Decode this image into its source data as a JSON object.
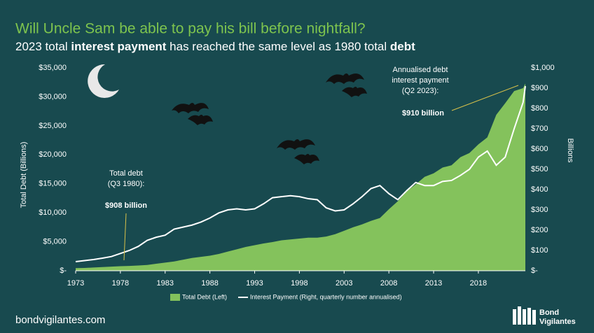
{
  "chart_data": {
    "type": "combo",
    "title": "Will Uncle Sam be able to pay his bill before nightfall?",
    "subtitle": [
      {
        "text": "2023 total ",
        "bold": false
      },
      {
        "text": "interest payment",
        "bold": true
      },
      {
        "text": " has reached the same level as 1980 total ",
        "bold": false
      },
      {
        "text": "debt",
        "bold": true
      }
    ],
    "x": [
      1973,
      1974,
      1975,
      1976,
      1977,
      1978,
      1979,
      1980,
      1981,
      1982,
      1983,
      1984,
      1985,
      1986,
      1987,
      1988,
      1989,
      1990,
      1991,
      1992,
      1993,
      1994,
      1995,
      1996,
      1997,
      1998,
      1999,
      2000,
      2001,
      2002,
      2003,
      2004,
      2005,
      2006,
      2007,
      2008,
      2009,
      2010,
      2011,
      2012,
      2013,
      2014,
      2015,
      2016,
      2017,
      2018,
      2019,
      2020,
      2021,
      2022,
      2023,
      2023.25
    ],
    "xlim": [
      1973,
      2023.25
    ],
    "xticks": [
      1973,
      1978,
      1983,
      1988,
      1993,
      1998,
      2003,
      2008,
      2013,
      2018
    ],
    "y_label": "Total Debt (Billions)",
    "y2_label": "Billions",
    "ylim": [
      0,
      35000
    ],
    "yticks": [
      {
        "value": 0,
        "label": "$-"
      },
      {
        "value": 5000,
        "label": "$5,000"
      },
      {
        "value": 10000,
        "label": "$10,000"
      },
      {
        "value": 15000,
        "label": "$15,000"
      },
      {
        "value": 20000,
        "label": "$20,000"
      },
      {
        "value": 25000,
        "label": "$25,000"
      },
      {
        "value": 30000,
        "label": "$30,000"
      },
      {
        "value": 35000,
        "label": "$35,000"
      }
    ],
    "y2lim": [
      0,
      1000
    ],
    "y2ticks": [
      {
        "value": 0,
        "label": "$-"
      },
      {
        "value": 100,
        "label": "$100"
      },
      {
        "value": 200,
        "label": "$200"
      },
      {
        "value": 300,
        "label": "$300"
      },
      {
        "value": 400,
        "label": "$400"
      },
      {
        "value": 500,
        "label": "$500"
      },
      {
        "value": 600,
        "label": "$600"
      },
      {
        "value": 700,
        "label": "$700"
      },
      {
        "value": 800,
        "label": "$800"
      },
      {
        "value": 900,
        "label": "$900"
      },
      {
        "value": 1000,
        "label": "$1,000"
      }
    ],
    "series": [
      {
        "name": "Total Debt (Left)",
        "type": "area",
        "axis": "y",
        "color": "#84c25c",
        "values": [
          460,
          480,
          560,
          640,
          710,
          780,
          830,
          908,
          1000,
          1200,
          1400,
          1600,
          1900,
          2200,
          2400,
          2600,
          2900,
          3300,
          3700,
          4100,
          4400,
          4700,
          4950,
          5250,
          5400,
          5550,
          5700,
          5700,
          5900,
          6300,
          6900,
          7500,
          8000,
          8600,
          9100,
          10600,
          12000,
          13700,
          14900,
          16200,
          16800,
          17800,
          18200,
          19600,
          20300,
          21800,
          23000,
          26900,
          28900,
          31000,
          31500,
          32300
        ]
      },
      {
        "name": "Interest Payment (Right, quarterly number annualised)",
        "type": "line",
        "axis": "y2",
        "color": "#ffffff",
        "values": [
          45,
          50,
          55,
          62,
          70,
          85,
          100,
          120,
          150,
          165,
          175,
          205,
          215,
          225,
          240,
          260,
          285,
          300,
          305,
          300,
          305,
          330,
          360,
          365,
          370,
          365,
          355,
          350,
          310,
          295,
          300,
          330,
          365,
          405,
          420,
          380,
          350,
          395,
          435,
          420,
          420,
          440,
          445,
          470,
          500,
          560,
          590,
          520,
          560,
          700,
          830,
          910
        ]
      }
    ],
    "annotations": [
      {
        "lines": [
          "Total debt",
          "(Q3 1980):"
        ],
        "value_text": "$908 billion"
      },
      {
        "lines": [
          "Annualised debt",
          "interest payment",
          "(Q2 2023):"
        ],
        "value_text": "$910 billion"
      }
    ],
    "footer": "bondvigilantes.com",
    "logo": [
      "Bond",
      "Vigilantes"
    ]
  }
}
